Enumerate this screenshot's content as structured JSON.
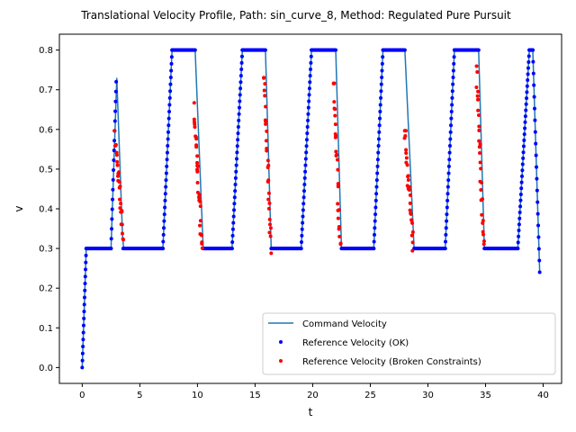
{
  "chart_data": {
    "type": "line",
    "title": "Translational Velocity Profile, Path: sin_curve_8, Method: Regulated Pure Pursuit",
    "xlabel": "t",
    "ylabel": "v",
    "xlim": [
      -1.98,
      41.6
    ],
    "ylim": [
      -0.04,
      0.84
    ],
    "xticks": [
      0,
      5,
      10,
      15,
      20,
      25,
      30,
      35,
      40
    ],
    "yticks": [
      0.0,
      0.1,
      0.2,
      0.3,
      0.4,
      0.5,
      0.6,
      0.7,
      0.8
    ],
    "legend_position": "lower-right",
    "grid": false,
    "series": [
      {
        "name": "Command Velocity",
        "kind": "line",
        "color": "#1f77b4",
        "points": [
          [
            0.0,
            0.0
          ],
          [
            0.35,
            0.3
          ],
          [
            2.5,
            0.3
          ],
          [
            3.0,
            0.73
          ],
          [
            3.5,
            0.33
          ],
          [
            3.6,
            0.3
          ],
          [
            7.0,
            0.3
          ],
          [
            7.8,
            0.8
          ],
          [
            9.8,
            0.8
          ],
          [
            10.5,
            0.3
          ],
          [
            13.0,
            0.3
          ],
          [
            13.9,
            0.8
          ],
          [
            15.9,
            0.8
          ],
          [
            16.4,
            0.3
          ],
          [
            19.0,
            0.3
          ],
          [
            19.9,
            0.8
          ],
          [
            22.0,
            0.8
          ],
          [
            22.5,
            0.3
          ],
          [
            25.3,
            0.3
          ],
          [
            26.1,
            0.8
          ],
          [
            28.0,
            0.8
          ],
          [
            28.8,
            0.3
          ],
          [
            31.5,
            0.3
          ],
          [
            32.3,
            0.8
          ],
          [
            34.4,
            0.8
          ],
          [
            34.9,
            0.3
          ],
          [
            37.8,
            0.3
          ],
          [
            38.8,
            0.8
          ],
          [
            39.1,
            0.8
          ],
          [
            39.7,
            0.24
          ]
        ]
      },
      {
        "name": "Reference Velocity (OK)",
        "kind": "scatter",
        "color": "#0000ff",
        "segments": [
          {
            "t": [
              0.0,
              0.35
            ],
            "v": [
              0.0,
              0.3
            ],
            "n": 18
          },
          {
            "t": [
              0.35,
              2.5
            ],
            "v": [
              0.3,
              0.3
            ],
            "n": 40
          },
          {
            "t": [
              2.5,
              2.95
            ],
            "v": [
              0.3,
              0.72
            ],
            "n": 18
          },
          {
            "t": [
              3.55,
              7.0
            ],
            "v": [
              0.3,
              0.3
            ],
            "n": 55
          },
          {
            "t": [
              7.0,
              7.8
            ],
            "v": [
              0.3,
              0.8
            ],
            "n": 30
          },
          {
            "t": [
              7.8,
              9.8
            ],
            "v": [
              0.8,
              0.8
            ],
            "n": 35
          },
          {
            "t": [
              10.5,
              13.0
            ],
            "v": [
              0.3,
              0.3
            ],
            "n": 45
          },
          {
            "t": [
              13.0,
              13.9
            ],
            "v": [
              0.3,
              0.8
            ],
            "n": 32
          },
          {
            "t": [
              13.9,
              15.9
            ],
            "v": [
              0.8,
              0.8
            ],
            "n": 35
          },
          {
            "t": [
              16.4,
              19.0
            ],
            "v": [
              0.3,
              0.3
            ],
            "n": 45
          },
          {
            "t": [
              19.0,
              19.9
            ],
            "v": [
              0.3,
              0.8
            ],
            "n": 32
          },
          {
            "t": [
              19.9,
              22.0
            ],
            "v": [
              0.8,
              0.8
            ],
            "n": 35
          },
          {
            "t": [
              22.5,
              25.3
            ],
            "v": [
              0.3,
              0.3
            ],
            "n": 48
          },
          {
            "t": [
              25.3,
              26.1
            ],
            "v": [
              0.3,
              0.8
            ],
            "n": 30
          },
          {
            "t": [
              26.1,
              28.0
            ],
            "v": [
              0.8,
              0.8
            ],
            "n": 33
          },
          {
            "t": [
              28.8,
              31.5
            ],
            "v": [
              0.3,
              0.3
            ],
            "n": 45
          },
          {
            "t": [
              31.5,
              32.3
            ],
            "v": [
              0.3,
              0.8
            ],
            "n": 30
          },
          {
            "t": [
              32.3,
              34.4
            ],
            "v": [
              0.8,
              0.8
            ],
            "n": 35
          },
          {
            "t": [
              34.9,
              37.8
            ],
            "v": [
              0.3,
              0.3
            ],
            "n": 50
          },
          {
            "t": [
              37.8,
              38.8
            ],
            "v": [
              0.3,
              0.8
            ],
            "n": 34
          },
          {
            "t": [
              38.8,
              39.1
            ],
            "v": [
              0.8,
              0.8
            ],
            "n": 6
          },
          {
            "t": [
              39.1,
              39.7
            ],
            "v": [
              0.8,
              0.24
            ],
            "n": 20
          }
        ]
      },
      {
        "name": "Reference Velocity (Broken Constraints)",
        "kind": "scatter",
        "color": "#ff0000",
        "segments": [
          {
            "t": [
              2.85,
              3.55
            ],
            "v": [
              0.58,
              0.33
            ],
            "n": 26
          },
          {
            "t": [
              9.7,
              10.4
            ],
            "v": [
              0.65,
              0.3
            ],
            "n": 32
          },
          {
            "t": [
              15.8,
              16.35
            ],
            "v": [
              0.73,
              0.3
            ],
            "n": 28
          },
          {
            "t": [
              21.8,
              22.4
            ],
            "v": [
              0.73,
              0.3
            ],
            "n": 28
          },
          {
            "t": [
              28.0,
              28.7
            ],
            "v": [
              0.6,
              0.3
            ],
            "n": 28
          },
          {
            "t": [
              34.2,
              34.85
            ],
            "v": [
              0.75,
              0.3
            ],
            "n": 28
          }
        ]
      }
    ]
  }
}
